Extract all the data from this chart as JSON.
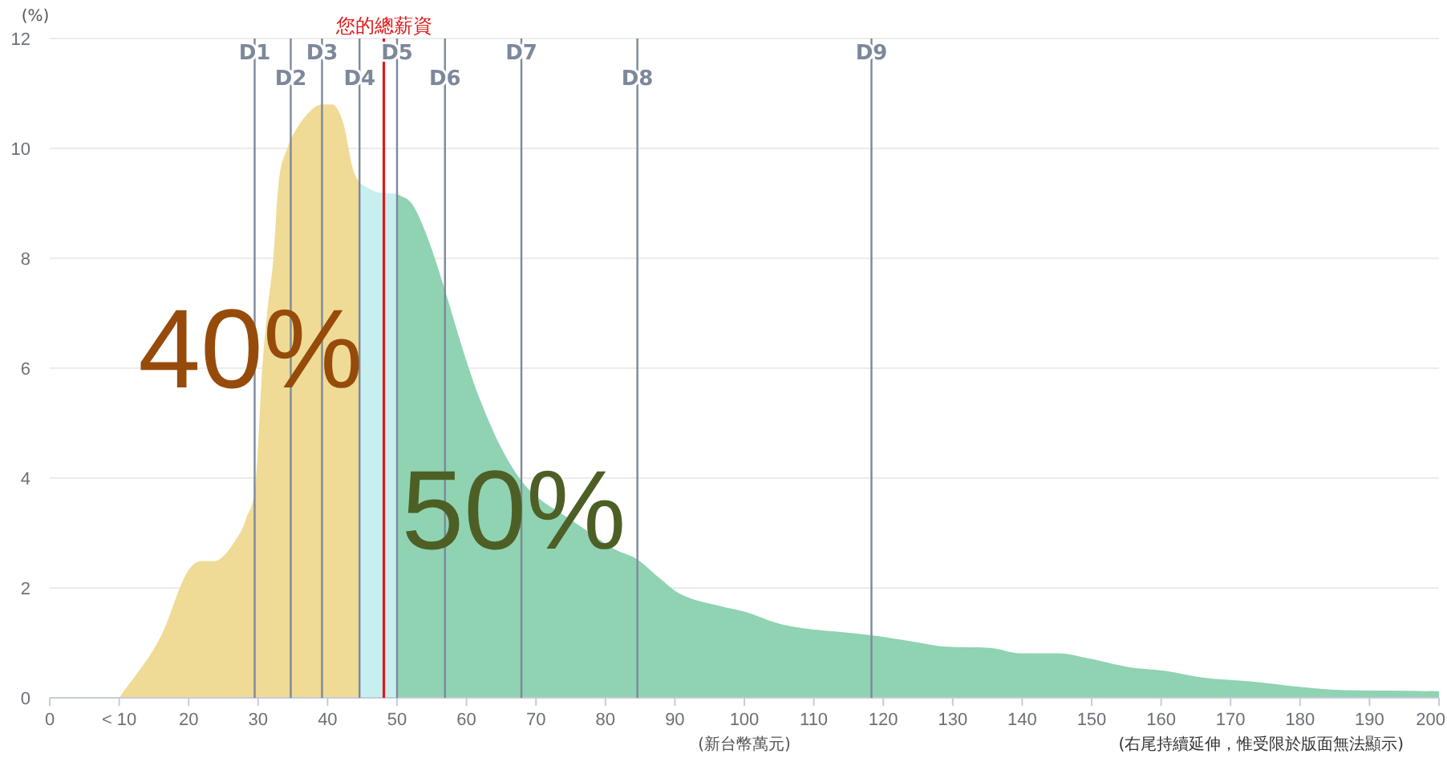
{
  "chart_data": {
    "type": "area",
    "ylabel": "(%)",
    "xlabel": "(新台幣萬元)",
    "xlim": [
      0,
      200
    ],
    "xticks": [
      0,
      {
        "value": 10,
        "label": "< 10"
      },
      20,
      30,
      40,
      50,
      60,
      70,
      80,
      90,
      100,
      110,
      120,
      130,
      140,
      150,
      160,
      170,
      180,
      190,
      200
    ],
    "ylim": [
      0,
      12
    ],
    "yticks": [
      0,
      2,
      4,
      6,
      8,
      10,
      12
    ],
    "grid": "y",
    "series": [
      {
        "color": "#efdb95",
        "x": [
          10,
          16.0,
          19.8,
          21.8,
          23.7,
          26.8,
          28.3,
          29.7,
          30.6,
          31.3,
          32.2,
          32.9,
          34.2,
          35.5,
          37.5,
          39.1,
          40.6,
          42.2,
          43.7,
          44.6
        ],
        "values": [
          0,
          1.12,
          2.29,
          2.49,
          2.49,
          2.88,
          3.27,
          4.0,
          6.0,
          7.0,
          8.0,
          9.3,
          10.0,
          10.35,
          10.68,
          10.8,
          10.8,
          10.49,
          9.61,
          9.37
        ]
      },
      {
        "color": "#c8efef",
        "x": [
          44.6,
          46.8,
          50.0
        ],
        "values": [
          9.37,
          9.22,
          9.17
        ]
      },
      {
        "color": "#8fd3b2",
        "x": [
          50.0,
          52.2,
          54.5,
          56.8,
          59.1,
          61.0,
          63.0,
          65.2,
          67.9,
          70.5,
          73.7,
          77.6,
          81.4,
          84.6,
          87.6,
          90.6,
          96.8,
          100.3,
          104.5,
          108.3,
          113.7,
          118.3,
          124.5,
          129.1,
          135.3,
          139.9,
          145.3,
          149.1,
          155.3,
          160.7,
          166.0,
          173.7,
          179.9,
          184.5,
          193.0,
          200
        ],
        "values": [
          9.17,
          8.98,
          8.34,
          7.46,
          6.49,
          5.75,
          5.1,
          4.5,
          3.95,
          3.62,
          3.35,
          3.02,
          2.7,
          2.52,
          2.2,
          1.9,
          1.66,
          1.56,
          1.37,
          1.27,
          1.2,
          1.14,
          1.02,
          0.93,
          0.91,
          0.81,
          0.81,
          0.73,
          0.56,
          0.49,
          0.37,
          0.29,
          0.2,
          0.15,
          0.13,
          0.12
        ]
      }
    ],
    "ref_lines": [
      {
        "axis": "x",
        "value": 48.1,
        "label": "您的總薪資",
        "color": "#e01818"
      },
      {
        "axis": "x",
        "value": 29.5,
        "label": "D1",
        "color": "#7d889b"
      },
      {
        "axis": "x",
        "value": 34.7,
        "label": "D2",
        "color": "#7d889b"
      },
      {
        "axis": "x",
        "value": 39.2,
        "label": "D3",
        "color": "#7d889b"
      },
      {
        "axis": "x",
        "value": 44.6,
        "label": "D4",
        "color": "#7d889b"
      },
      {
        "axis": "x",
        "value": 50.0,
        "label": "D5",
        "color": "#7d889b"
      },
      {
        "axis": "x",
        "value": 56.9,
        "label": "D6",
        "color": "#7d889b"
      },
      {
        "axis": "x",
        "value": 67.9,
        "label": "D7",
        "color": "#7d889b"
      },
      {
        "axis": "x",
        "value": 84.6,
        "label": "D8",
        "color": "#7d889b"
      },
      {
        "axis": "x",
        "value": 118.3,
        "label": "D9",
        "color": "#7d889b"
      }
    ],
    "annotations": [
      {
        "text": "40%",
        "x": 28.9,
        "y": 6.35
      },
      {
        "text": "50%",
        "x": 66.8,
        "y": 3.42
      },
      "(右尾持續延伸，惟受限於版面無法顯示)"
    ]
  }
}
